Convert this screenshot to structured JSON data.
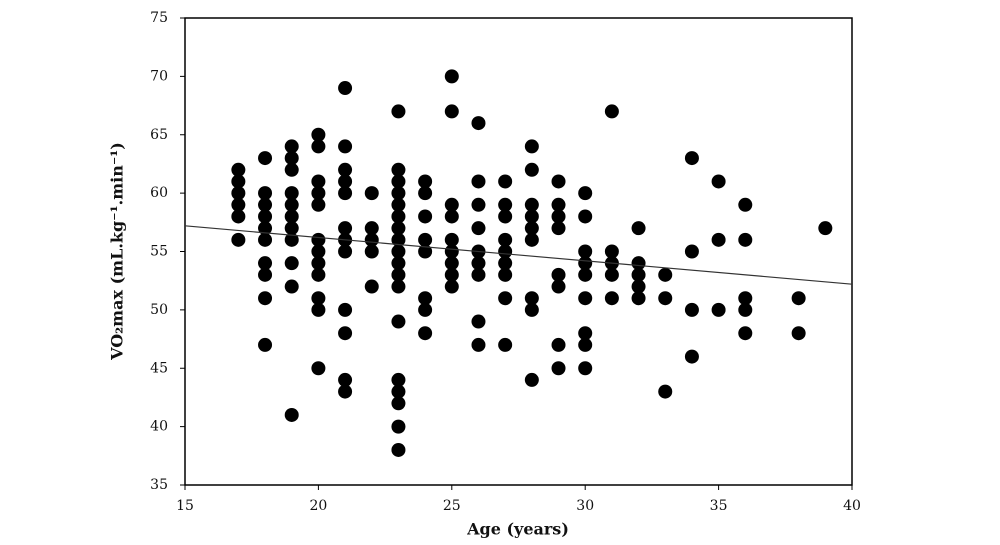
{
  "chart_data": {
    "type": "scatter",
    "xlabel": "Age (years)",
    "ylabel": "VO₂max (mL.kg⁻¹.min⁻¹)",
    "x": [
      17,
      17,
      17,
      17,
      17,
      17,
      18,
      18,
      18,
      18,
      18,
      18,
      18,
      18,
      18,
      18,
      19,
      19,
      19,
      19,
      19,
      19,
      19,
      19,
      19,
      19,
      19,
      20,
      20,
      20,
      20,
      20,
      20,
      20,
      20,
      20,
      20,
      20,
      20,
      21,
      21,
      21,
      21,
      21,
      21,
      21,
      21,
      21,
      21,
      21,
      21,
      22,
      22,
      22,
      22,
      22,
      23,
      23,
      23,
      23,
      23,
      23,
      23,
      23,
      23,
      23,
      23,
      23,
      23,
      23,
      23,
      23,
      23,
      23,
      24,
      24,
      24,
      24,
      24,
      24,
      24,
      24,
      25,
      25,
      25,
      25,
      25,
      25,
      25,
      25,
      25,
      26,
      26,
      26,
      26,
      26,
      26,
      26,
      26,
      26,
      27,
      27,
      27,
      27,
      27,
      27,
      27,
      27,
      27,
      28,
      28,
      28,
      28,
      28,
      28,
      28,
      28,
      28,
      29,
      29,
      29,
      29,
      29,
      29,
      29,
      29,
      30,
      30,
      30,
      30,
      30,
      30,
      30,
      30,
      30,
      31,
      31,
      31,
      31,
      31,
      32,
      32,
      32,
      32,
      32,
      33,
      33,
      33,
      34,
      34,
      34,
      34,
      35,
      35,
      35,
      36,
      36,
      36,
      36,
      36,
      38,
      38,
      39
    ],
    "y": [
      62,
      61,
      60,
      59,
      58,
      56,
      63,
      60,
      59,
      58,
      57,
      56,
      54,
      53,
      51,
      47,
      64,
      63,
      62,
      60,
      59,
      58,
      57,
      56,
      54,
      52,
      41,
      65,
      64,
      61,
      60,
      59,
      56,
      55,
      54,
      53,
      51,
      50,
      45,
      69,
      64,
      62,
      61,
      60,
      57,
      56,
      55,
      50,
      48,
      44,
      43,
      60,
      57,
      56,
      55,
      52,
      67,
      62,
      61,
      60,
      59,
      58,
      57,
      56,
      55,
      54,
      53,
      52,
      49,
      44,
      43,
      42,
      40,
      38,
      61,
      60,
      58,
      56,
      55,
      51,
      50,
      48,
      70,
      67,
      59,
      58,
      56,
      55,
      54,
      53,
      52,
      66,
      61,
      59,
      57,
      55,
      54,
      53,
      49,
      47,
      61,
      59,
      58,
      56,
      55,
      54,
      53,
      51,
      47,
      64,
      62,
      59,
      58,
      57,
      56,
      51,
      50,
      44,
      61,
      59,
      58,
      57,
      53,
      52,
      47,
      45,
      60,
      58,
      55,
      54,
      53,
      51,
      48,
      47,
      45,
      67,
      55,
      54,
      53,
      51,
      57,
      54,
      53,
      52,
      51,
      53,
      51,
      43,
      63,
      55,
      50,
      46,
      61,
      56,
      50,
      59,
      56,
      51,
      50,
      48,
      51,
      48,
      57
    ],
    "color": "#000000",
    "trendline": {
      "x": [
        15,
        40
      ],
      "y": [
        57.2,
        52.2
      ],
      "color": "#333333"
    },
    "xlim": [
      15,
      40
    ],
    "xticks": [
      15,
      20,
      25,
      30,
      35,
      40
    ],
    "ylim": [
      35,
      75
    ],
    "yticks": [
      35,
      40,
      45,
      50,
      55,
      60,
      65,
      70,
      75
    ]
  }
}
